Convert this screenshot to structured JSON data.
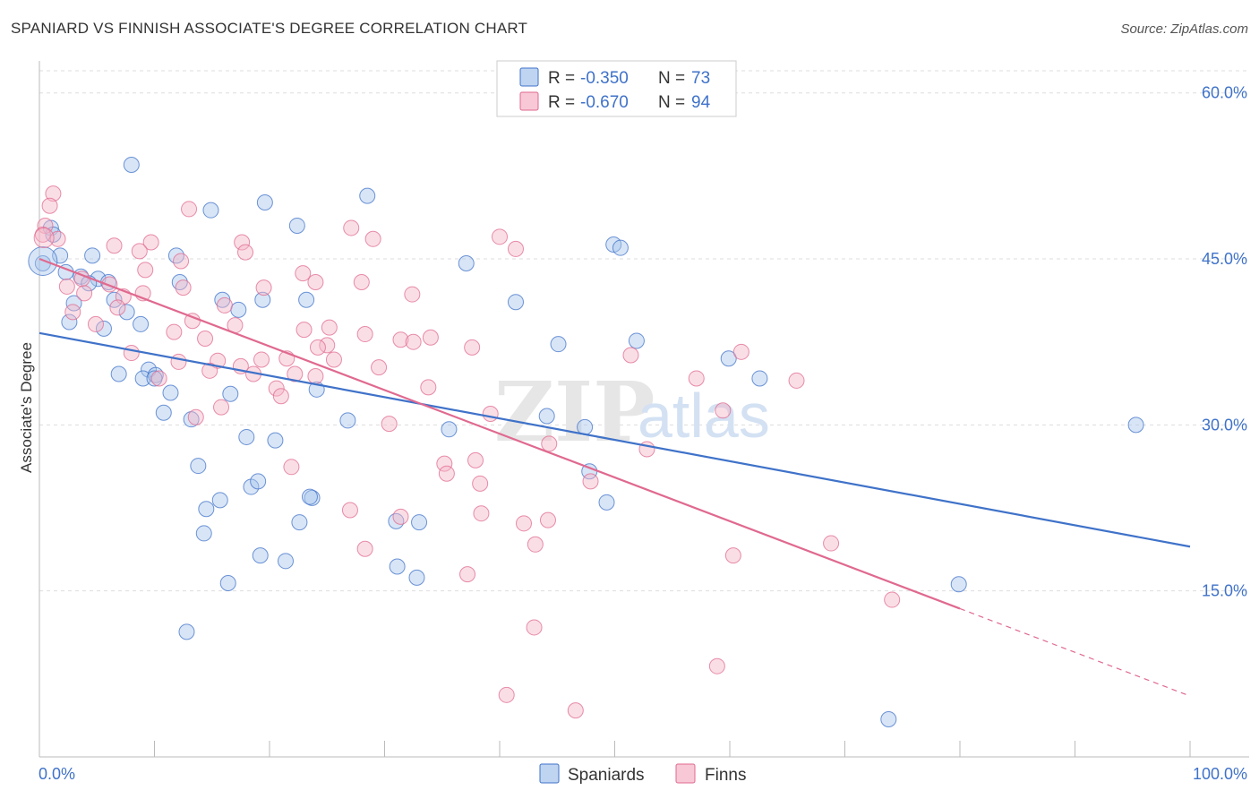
{
  "title": "SPANIARD VS FINNISH ASSOCIATE'S DEGREE CORRELATION CHART",
  "source": "Source: ZipAtlas.com",
  "colors": {
    "blue": "#3f72c9",
    "blue_fill": "#a9c5ec",
    "pink": "#e0698f",
    "pink_fill": "#f5b6c8",
    "grid": "#dddddd"
  },
  "legend": {
    "r_label": "R =",
    "n_label": "N =",
    "rows": [
      {
        "r": "-0.350",
        "n": "73"
      },
      {
        "r": "-0.670",
        "n": "94"
      }
    ]
  },
  "watermark": {
    "zip": "ZIP",
    "atlas": "atlas"
  },
  "chart_data": {
    "type": "scatter",
    "title": "SPANIARD VS FINNISH ASSOCIATE'S DEGREE CORRELATION CHART",
    "xlabel": "",
    "ylabel": "Associate's Degree",
    "xlim": [
      0,
      100
    ],
    "ylim": [
      0,
      62
    ],
    "x_tick_labels": [
      "0.0%",
      "100.0%"
    ],
    "y_ticks": [
      15,
      30,
      45,
      60
    ],
    "y_tick_labels": [
      "15.0%",
      "30.0%",
      "45.0%",
      "60.0%"
    ],
    "grid": true,
    "legend_position": "top-center",
    "series": [
      {
        "name": "Spaniards",
        "color": "#3f72c9",
        "trend": {
          "x0": 0,
          "y0": 38.3,
          "x1": 100,
          "y1": 19.0
        },
        "points": [
          [
            8.0,
            53.5
          ],
          [
            19.6,
            50.1
          ],
          [
            14.9,
            49.4
          ],
          [
            28.5,
            50.7
          ],
          [
            1.0,
            47.8
          ],
          [
            1.2,
            47.2
          ],
          [
            22.4,
            48.0
          ],
          [
            1.8,
            45.3
          ],
          [
            4.6,
            45.3
          ],
          [
            11.9,
            45.3
          ],
          [
            0.3,
            44.6
          ],
          [
            37.1,
            44.6
          ],
          [
            49.9,
            46.3
          ],
          [
            50.5,
            46.0
          ],
          [
            2.3,
            43.8
          ],
          [
            3.6,
            43.4
          ],
          [
            5.1,
            43.2
          ],
          [
            6.0,
            42.9
          ],
          [
            4.3,
            42.8
          ],
          [
            12.2,
            42.9
          ],
          [
            15.9,
            41.3
          ],
          [
            19.4,
            41.3
          ],
          [
            23.2,
            41.3
          ],
          [
            3.0,
            41.0
          ],
          [
            6.5,
            41.3
          ],
          [
            41.4,
            41.1
          ],
          [
            17.3,
            40.4
          ],
          [
            7.6,
            40.2
          ],
          [
            2.6,
            39.3
          ],
          [
            8.8,
            39.1
          ],
          [
            5.6,
            38.7
          ],
          [
            45.1,
            37.3
          ],
          [
            51.9,
            37.6
          ],
          [
            59.9,
            36.0
          ],
          [
            9.5,
            35.0
          ],
          [
            6.9,
            34.6
          ],
          [
            9.0,
            34.2
          ],
          [
            10.1,
            34.5
          ],
          [
            10.0,
            34.2
          ],
          [
            62.6,
            34.2
          ],
          [
            11.4,
            32.9
          ],
          [
            16.6,
            32.8
          ],
          [
            24.1,
            33.2
          ],
          [
            10.8,
            31.1
          ],
          [
            13.2,
            30.5
          ],
          [
            26.8,
            30.4
          ],
          [
            44.1,
            30.8
          ],
          [
            35.6,
            29.6
          ],
          [
            47.4,
            29.8
          ],
          [
            95.3,
            30.0
          ],
          [
            18.0,
            28.9
          ],
          [
            20.5,
            28.6
          ],
          [
            13.8,
            26.3
          ],
          [
            47.8,
            25.8
          ],
          [
            18.4,
            24.4
          ],
          [
            19.0,
            24.9
          ],
          [
            15.7,
            23.2
          ],
          [
            23.7,
            23.4
          ],
          [
            23.5,
            23.5
          ],
          [
            14.5,
            22.4
          ],
          [
            49.3,
            23.0
          ],
          [
            22.6,
            21.2
          ],
          [
            31.0,
            21.3
          ],
          [
            33.0,
            21.2
          ],
          [
            14.3,
            20.2
          ],
          [
            19.2,
            18.2
          ],
          [
            21.4,
            17.7
          ],
          [
            31.1,
            17.2
          ],
          [
            32.8,
            16.2
          ],
          [
            16.4,
            15.7
          ],
          [
            79.9,
            15.6
          ],
          [
            12.8,
            11.3
          ],
          [
            73.8,
            3.4
          ]
        ]
      },
      {
        "name": "Finns",
        "color": "#e0698f",
        "trend": {
          "x0": 0,
          "y0": 45.0,
          "x1": 80,
          "y1": 13.4
        },
        "trend_dashed": {
          "x0": 80,
          "y0": 13.4,
          "x1": 100,
          "y1": 5.5
        },
        "points": [
          [
            1.2,
            50.9
          ],
          [
            0.9,
            49.8
          ],
          [
            13.0,
            49.5
          ],
          [
            0.5,
            48.0
          ],
          [
            27.1,
            47.8
          ],
          [
            0.3,
            47.2
          ],
          [
            1.6,
            46.8
          ],
          [
            29.0,
            46.8
          ],
          [
            17.6,
            46.5
          ],
          [
            9.7,
            46.5
          ],
          [
            6.5,
            46.2
          ],
          [
            8.7,
            45.7
          ],
          [
            17.9,
            45.6
          ],
          [
            41.4,
            45.9
          ],
          [
            12.3,
            44.8
          ],
          [
            9.2,
            44.0
          ],
          [
            22.9,
            43.7
          ],
          [
            3.7,
            43.2
          ],
          [
            28.0,
            42.9
          ],
          [
            24.0,
            42.9
          ],
          [
            2.4,
            42.5
          ],
          [
            6.1,
            42.7
          ],
          [
            19.5,
            42.4
          ],
          [
            12.5,
            42.4
          ],
          [
            3.9,
            41.9
          ],
          [
            9.0,
            41.9
          ],
          [
            7.3,
            41.6
          ],
          [
            32.4,
            41.8
          ],
          [
            16.1,
            40.8
          ],
          [
            6.8,
            40.6
          ],
          [
            2.9,
            40.2
          ],
          [
            13.3,
            39.4
          ],
          [
            4.9,
            39.1
          ],
          [
            17.0,
            39.0
          ],
          [
            25.2,
            38.8
          ],
          [
            23.0,
            38.6
          ],
          [
            11.7,
            38.4
          ],
          [
            28.3,
            38.2
          ],
          [
            14.4,
            37.8
          ],
          [
            31.4,
            37.7
          ],
          [
            34.0,
            37.9
          ],
          [
            32.5,
            37.5
          ],
          [
            25.0,
            37.2
          ],
          [
            24.2,
            37.0
          ],
          [
            37.6,
            37.0
          ],
          [
            61.0,
            36.6
          ],
          [
            51.4,
            36.3
          ],
          [
            8.0,
            36.5
          ],
          [
            25.6,
            35.9
          ],
          [
            19.3,
            35.9
          ],
          [
            21.5,
            36.0
          ],
          [
            15.5,
            35.8
          ],
          [
            12.1,
            35.7
          ],
          [
            17.5,
            35.3
          ],
          [
            29.5,
            35.2
          ],
          [
            14.8,
            34.9
          ],
          [
            18.6,
            34.6
          ],
          [
            22.2,
            34.6
          ],
          [
            10.4,
            34.2
          ],
          [
            24.0,
            34.4
          ],
          [
            57.1,
            34.2
          ],
          [
            65.8,
            34.0
          ],
          [
            33.8,
            33.4
          ],
          [
            20.6,
            33.3
          ],
          [
            21.0,
            32.6
          ],
          [
            15.8,
            31.6
          ],
          [
            13.6,
            30.7
          ],
          [
            39.2,
            31.0
          ],
          [
            59.4,
            31.3
          ],
          [
            30.4,
            30.1
          ],
          [
            44.3,
            28.3
          ],
          [
            52.8,
            27.8
          ],
          [
            37.9,
            26.8
          ],
          [
            35.2,
            26.5
          ],
          [
            35.4,
            25.6
          ],
          [
            21.9,
            26.2
          ],
          [
            38.3,
            24.7
          ],
          [
            47.9,
            24.9
          ],
          [
            27.0,
            22.3
          ],
          [
            31.4,
            21.7
          ],
          [
            38.4,
            22.0
          ],
          [
            42.1,
            21.1
          ],
          [
            44.2,
            21.4
          ],
          [
            43.1,
            19.2
          ],
          [
            68.8,
            19.3
          ],
          [
            28.3,
            18.8
          ],
          [
            60.3,
            18.2
          ],
          [
            37.2,
            16.5
          ],
          [
            74.1,
            14.2
          ],
          [
            43.0,
            11.7
          ],
          [
            58.9,
            8.2
          ],
          [
            40.6,
            5.6
          ],
          [
            46.6,
            4.2
          ],
          [
            40.0,
            47.0
          ]
        ]
      }
    ]
  }
}
